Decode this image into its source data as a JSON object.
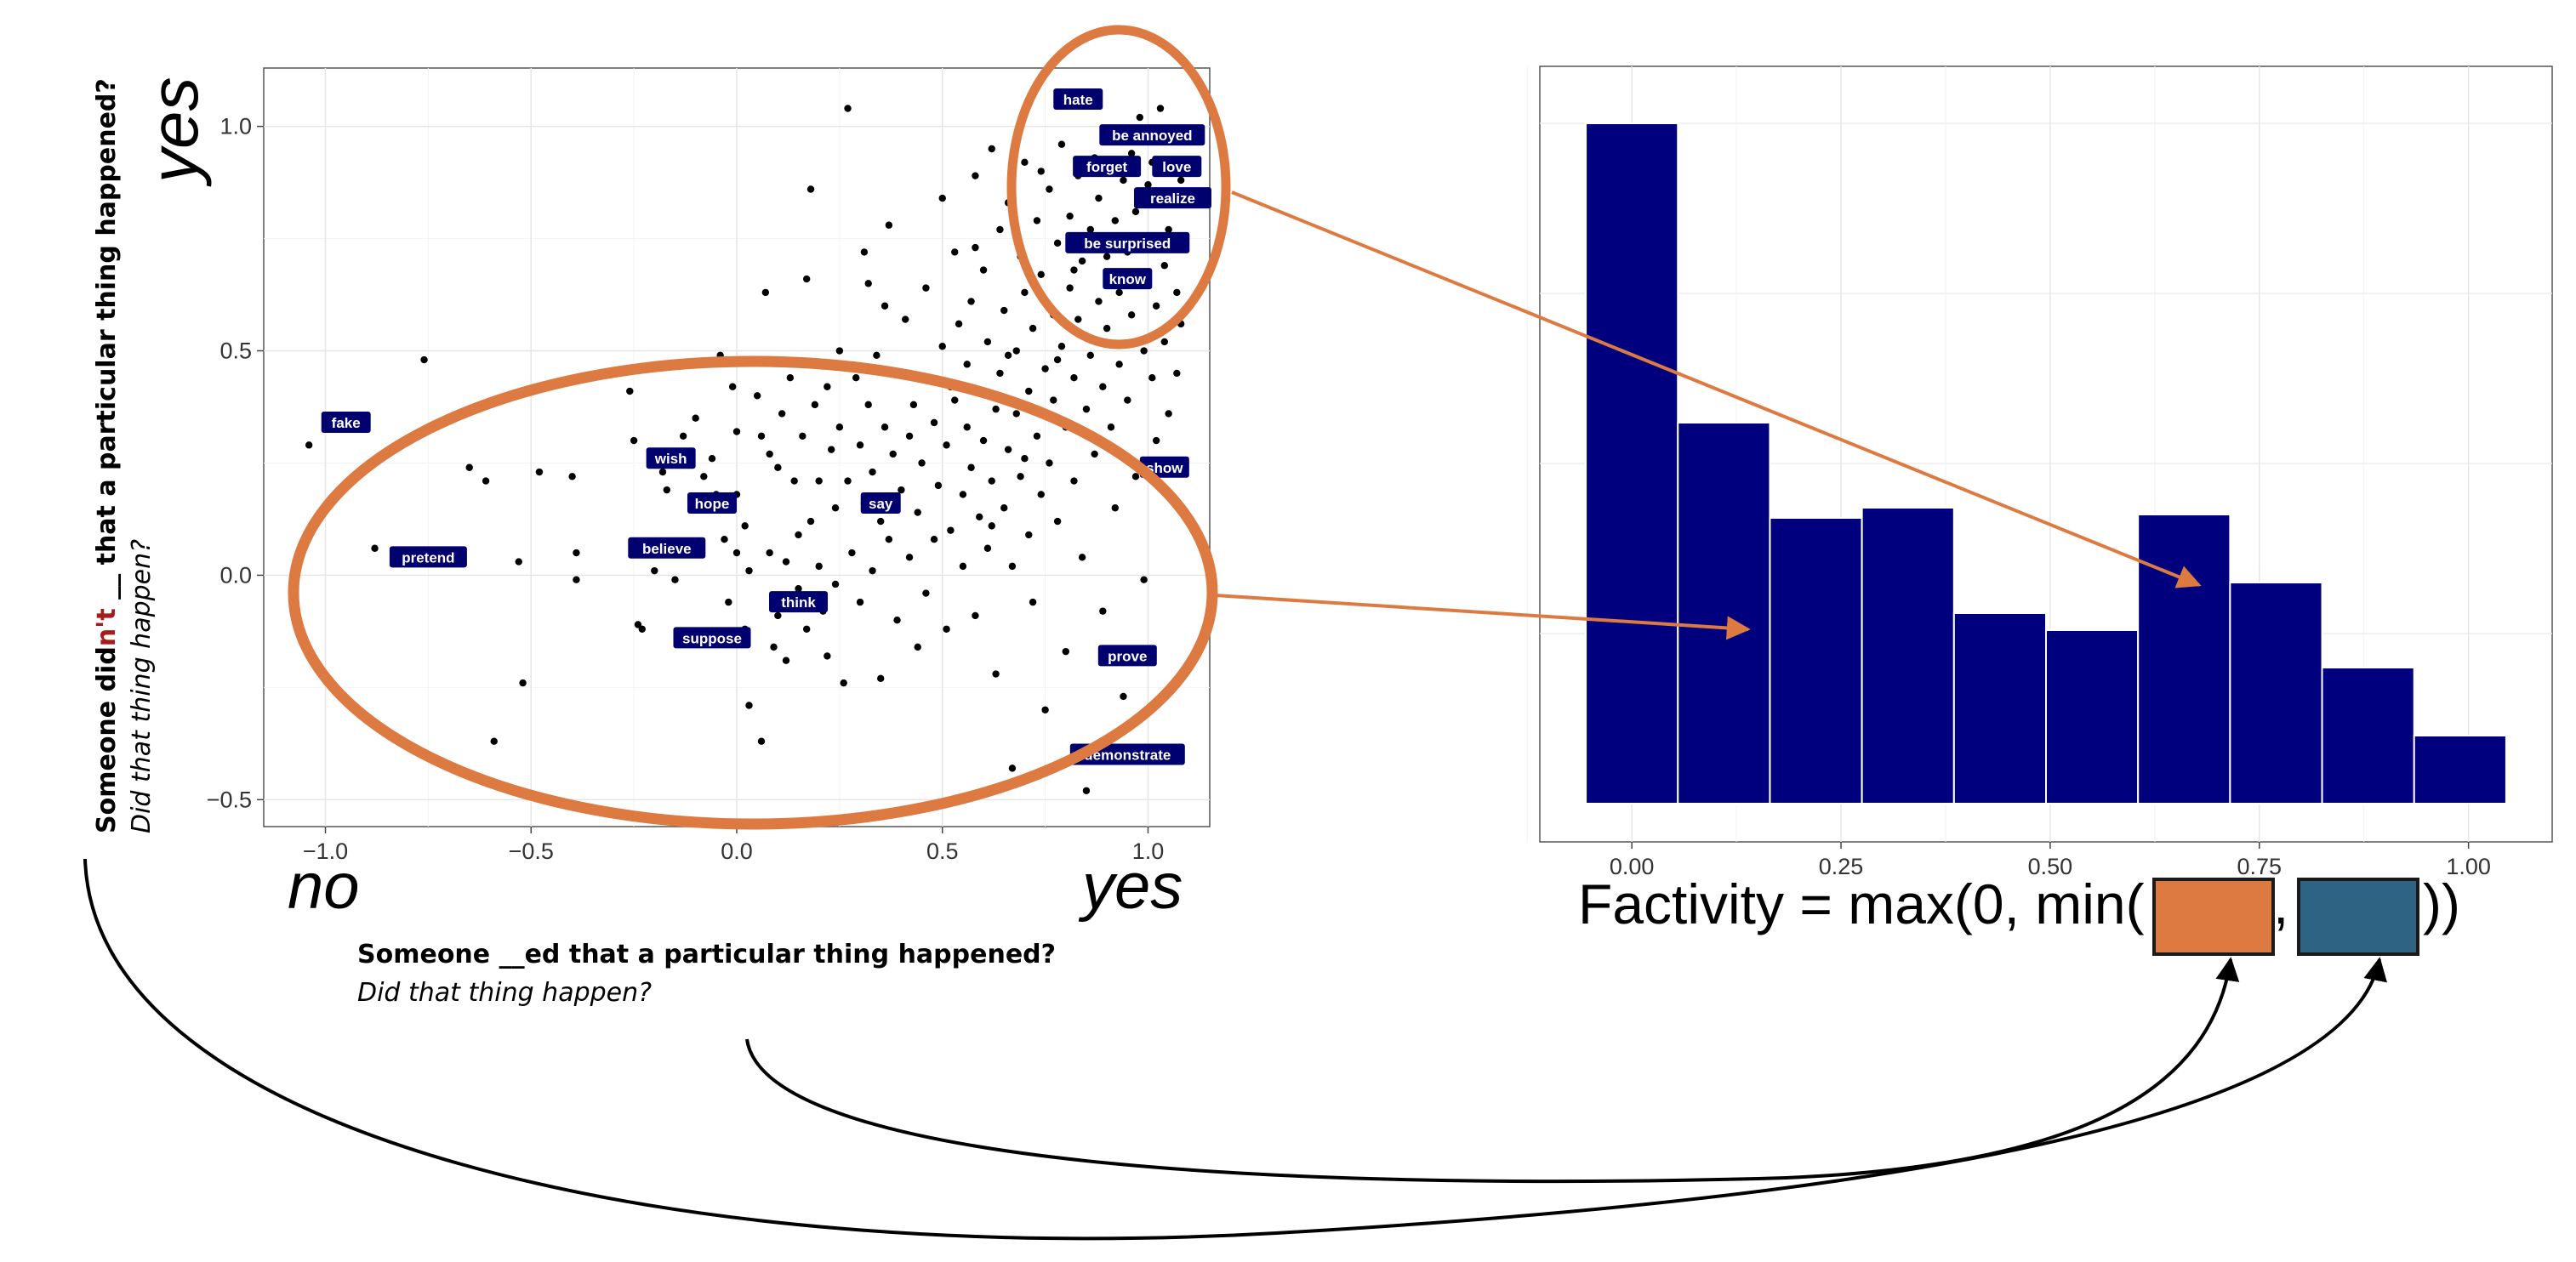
{
  "colors": {
    "accent_orange": "#dd7a42",
    "bar_navy": "#00007f",
    "label_navy": "#00006e",
    "box_blue": "#2e6383",
    "negation_red": "#a51c1c"
  },
  "y_question": {
    "prefix": "Someone did",
    "negation": "n't",
    "suffix": " __ that a particular thing happened?",
    "sub": "Did that thing happen?"
  },
  "x_question": {
    "text": "Someone  __ed that a particular thing happened?",
    "sub": "Did that thing happen?"
  },
  "axis_words": {
    "y_top": "yes",
    "x_left": "no",
    "x_right": "yes"
  },
  "formula": {
    "prefix": "Factivity = max(0, min(",
    "comma": ",",
    "suffix": "))"
  },
  "chart_data": [
    {
      "type": "scatter",
      "xlim": [
        -1.15,
        1.15
      ],
      "ylim": [
        -0.56,
        1.13
      ],
      "x_ticks": [
        -1.0,
        -0.5,
        0.0,
        0.5,
        1.0
      ],
      "x_tick_labels": [
        "−1.0",
        "−0.5",
        "0.0",
        "0.5",
        "1.0"
      ],
      "y_ticks": [
        -0.5,
        0.0,
        0.5,
        1.0
      ],
      "y_tick_labels": [
        "−0.5",
        "0.0",
        "0.5",
        "1.0"
      ],
      "grid": true,
      "labeled_points": [
        {
          "label": "hate",
          "x": 0.83,
          "y": 1.06
        },
        {
          "label": "be annoyed",
          "x": 1.01,
          "y": 0.98
        },
        {
          "label": "forget",
          "x": 0.9,
          "y": 0.91
        },
        {
          "label": "love",
          "x": 1.07,
          "y": 0.91
        },
        {
          "label": "realize",
          "x": 1.06,
          "y": 0.84
        },
        {
          "label": "be surprised",
          "x": 0.95,
          "y": 0.74
        },
        {
          "label": "know",
          "x": 0.95,
          "y": 0.66
        },
        {
          "label": "fake",
          "x": -0.95,
          "y": 0.34
        },
        {
          "label": "wish",
          "x": -0.16,
          "y": 0.26
        },
        {
          "label": "hope",
          "x": -0.06,
          "y": 0.16
        },
        {
          "label": "say",
          "x": 0.35,
          "y": 0.16
        },
        {
          "label": "show",
          "x": 1.04,
          "y": 0.24
        },
        {
          "label": "pretend",
          "x": -0.75,
          "y": 0.04
        },
        {
          "label": "believe",
          "x": -0.17,
          "y": 0.06
        },
        {
          "label": "think",
          "x": 0.15,
          "y": -0.06
        },
        {
          "label": "suppose",
          "x": -0.06,
          "y": -0.14
        },
        {
          "label": "prove",
          "x": 0.95,
          "y": -0.18
        },
        {
          "label": "demonstrate",
          "x": 0.95,
          "y": -0.4
        }
      ],
      "points": [
        [
          -1.04,
          0.29
        ],
        [
          -0.88,
          0.06
        ],
        [
          -0.76,
          0.48
        ],
        [
          -0.65,
          0.24
        ],
        [
          -0.61,
          0.21
        ],
        [
          -0.59,
          -0.37
        ],
        [
          -0.53,
          0.03
        ],
        [
          -0.52,
          -0.24
        ],
        [
          -0.48,
          0.23
        ],
        [
          -0.4,
          0.22
        ],
        [
          -0.39,
          0.05
        ],
        [
          -0.39,
          -0.01
        ],
        [
          -0.26,
          0.41
        ],
        [
          -0.25,
          0.3
        ],
        [
          -0.24,
          -0.11
        ],
        [
          -0.23,
          -0.12
        ],
        [
          -0.18,
          0.23
        ],
        [
          -0.17,
          0.19
        ],
        [
          -0.16,
          0.07
        ],
        [
          -0.15,
          -0.01
        ],
        [
          -0.14,
          -0.13
        ],
        [
          -0.13,
          0.31
        ],
        [
          -0.1,
          0.35
        ],
        [
          -0.08,
          0.22
        ],
        [
          -0.06,
          0.26
        ],
        [
          -0.05,
          0.18
        ],
        [
          -0.04,
          0.49
        ],
        [
          -0.03,
          0.08
        ],
        [
          -0.02,
          -0.06
        ],
        [
          -0.01,
          0.42
        ],
        [
          0.0,
          0.18
        ],
        [
          0.0,
          0.05
        ],
        [
          0.02,
          0.11
        ],
        [
          0.02,
          -0.12
        ],
        [
          0.03,
          0.01
        ],
        [
          0.03,
          -0.29
        ],
        [
          0.05,
          0.4
        ],
        [
          0.06,
          0.31
        ],
        [
          0.06,
          -0.37
        ],
        [
          0.07,
          0.63
        ],
        [
          0.08,
          0.27
        ],
        [
          0.08,
          0.05
        ],
        [
          0.09,
          -0.16
        ],
        [
          0.1,
          0.24
        ],
        [
          0.1,
          -0.09
        ],
        [
          0.11,
          0.36
        ],
        [
          0.12,
          0.03
        ],
        [
          0.12,
          -0.19
        ],
        [
          0.13,
          0.44
        ],
        [
          0.14,
          0.21
        ],
        [
          0.15,
          0.09
        ],
        [
          0.15,
          -0.03
        ],
        [
          0.16,
          0.31
        ],
        [
          0.17,
          0.66
        ],
        [
          0.17,
          -0.12
        ],
        [
          0.18,
          0.12
        ],
        [
          0.18,
          0.86
        ],
        [
          0.19,
          0.38
        ],
        [
          0.2,
          0.21
        ],
        [
          0.2,
          0.02
        ],
        [
          0.21,
          -0.08
        ],
        [
          0.22,
          0.42
        ],
        [
          0.23,
          0.28
        ],
        [
          0.24,
          0.15
        ],
        [
          0.24,
          -0.02
        ],
        [
          0.25,
          0.5
        ],
        [
          0.25,
          0.33
        ],
        [
          0.26,
          -0.24
        ],
        [
          0.27,
          1.04
        ],
        [
          0.27,
          0.21
        ],
        [
          0.28,
          0.05
        ],
        [
          0.29,
          0.44
        ],
        [
          0.3,
          0.29
        ],
        [
          0.3,
          -0.06
        ],
        [
          0.31,
          0.72
        ],
        [
          0.31,
          0.16
        ],
        [
          0.32,
          0.38
        ],
        [
          0.32,
          0.65
        ],
        [
          0.33,
          0.23
        ],
        [
          0.33,
          0.01
        ],
        [
          0.34,
          0.49
        ],
        [
          0.35,
          0.12
        ],
        [
          0.35,
          -0.23
        ],
        [
          0.36,
          0.33
        ],
        [
          0.37,
          0.78
        ],
        [
          0.37,
          0.08
        ],
        [
          0.38,
          0.27
        ],
        [
          0.39,
          0.45
        ],
        [
          0.39,
          -0.1
        ],
        [
          0.4,
          0.19
        ],
        [
          0.41,
          0.57
        ],
        [
          0.42,
          0.31
        ],
        [
          0.42,
          0.04
        ],
        [
          0.43,
          0.38
        ],
        [
          0.44,
          0.14
        ],
        [
          0.45,
          0.25
        ],
        [
          0.46,
          0.64
        ],
        [
          0.46,
          -0.04
        ],
        [
          0.47,
          0.44
        ],
        [
          0.48,
          0.34
        ],
        [
          0.48,
          0.08
        ],
        [
          0.49,
          0.2
        ],
        [
          0.5,
          0.84
        ],
        [
          0.5,
          0.51
        ],
        [
          0.51,
          0.29
        ],
        [
          0.51,
          -0.12
        ],
        [
          0.52,
          0.1
        ],
        [
          0.53,
          0.39
        ],
        [
          0.53,
          0.72
        ],
        [
          0.54,
          0.56
        ],
        [
          0.55,
          0.18
        ],
        [
          0.55,
          0.02
        ],
        [
          0.56,
          0.47
        ],
        [
          0.56,
          0.33
        ],
        [
          0.57,
          0.61
        ],
        [
          0.57,
          0.24
        ],
        [
          0.58,
          0.89
        ],
        [
          0.58,
          -0.09
        ],
        [
          0.59,
          0.41
        ],
        [
          0.59,
          0.13
        ],
        [
          0.6,
          0.68
        ],
        [
          0.6,
          0.3
        ],
        [
          0.61,
          0.52
        ],
        [
          0.61,
          0.06
        ],
        [
          0.62,
          0.21
        ],
        [
          0.62,
          0.95
        ],
        [
          0.63,
          0.37
        ],
        [
          0.63,
          -0.22
        ],
        [
          0.64,
          0.77
        ],
        [
          0.64,
          0.45
        ],
        [
          0.65,
          0.15
        ],
        [
          0.65,
          0.59
        ],
        [
          0.66,
          0.28
        ],
        [
          0.66,
          0.83
        ],
        [
          0.67,
          0.02
        ],
        [
          0.67,
          -0.43
        ],
        [
          0.68,
          0.5
        ],
        [
          0.68,
          0.36
        ],
        [
          0.69,
          0.71
        ],
        [
          0.69,
          0.22
        ],
        [
          0.7,
          0.92
        ],
        [
          0.7,
          0.63
        ],
        [
          0.71,
          0.41
        ],
        [
          0.71,
          0.09
        ],
        [
          0.72,
          0.55
        ],
        [
          0.72,
          -0.06
        ],
        [
          0.73,
          0.79
        ],
        [
          0.73,
          0.31
        ],
        [
          0.74,
          0.18
        ],
        [
          0.74,
          0.67
        ],
        [
          0.75,
          0.46
        ],
        [
          0.75,
          -0.3
        ],
        [
          0.76,
          0.86
        ],
        [
          0.76,
          0.25
        ],
        [
          0.77,
          0.58
        ],
        [
          0.77,
          0.39
        ],
        [
          0.78,
          0.74
        ],
        [
          0.78,
          0.12
        ],
        [
          0.79,
          0.96
        ],
        [
          0.79,
          0.51
        ],
        [
          0.8,
          0.33
        ],
        [
          0.8,
          -0.17
        ],
        [
          0.81,
          0.64
        ],
        [
          0.81,
          0.8
        ],
        [
          0.82,
          0.44
        ],
        [
          0.82,
          0.21
        ],
        [
          0.83,
          0.89
        ],
        [
          0.83,
          0.57
        ],
        [
          0.84,
          0.7
        ],
        [
          0.84,
          0.04
        ],
        [
          0.85,
          0.37
        ],
        [
          0.85,
          -0.48
        ],
        [
          0.86,
          0.77
        ],
        [
          0.86,
          0.49
        ],
        [
          0.87,
          0.93
        ],
        [
          0.87,
          0.27
        ],
        [
          0.88,
          0.61
        ],
        [
          0.88,
          0.84
        ],
        [
          0.89,
          0.42
        ],
        [
          0.89,
          -0.08
        ],
        [
          0.9,
          0.71
        ],
        [
          0.9,
          0.55
        ],
        [
          0.91,
          0.98
        ],
        [
          0.91,
          0.33
        ],
        [
          0.92,
          0.79
        ],
        [
          0.92,
          0.15
        ],
        [
          0.93,
          0.63
        ],
        [
          0.93,
          0.47
        ],
        [
          0.94,
          0.88
        ],
        [
          0.94,
          -0.27
        ],
        [
          0.95,
          0.72
        ],
        [
          0.95,
          0.39
        ],
        [
          0.96,
          0.94
        ],
        [
          0.96,
          0.58
        ],
        [
          0.97,
          0.81
        ],
        [
          0.97,
          0.22
        ],
        [
          0.98,
          1.02
        ],
        [
          0.98,
          0.66
        ],
        [
          0.99,
          0.5
        ],
        [
          0.99,
          -0.01
        ],
        [
          1.0,
          0.87
        ],
        [
          1.0,
          0.75
        ],
        [
          1.01,
          0.44
        ],
        [
          1.01,
          0.92
        ],
        [
          1.02,
          0.6
        ],
        [
          1.02,
          0.3
        ],
        [
          1.03,
          0.83
        ],
        [
          1.03,
          1.04
        ],
        [
          1.04,
          0.69
        ],
        [
          1.04,
          0.52
        ],
        [
          1.05,
          0.77
        ],
        [
          1.05,
          0.36
        ],
        [
          1.06,
          0.97
        ],
        [
          1.07,
          0.63
        ],
        [
          1.07,
          0.45
        ],
        [
          1.08,
          0.88
        ],
        [
          1.08,
          0.56
        ],
        [
          -0.3,
          0.45
        ],
        [
          -0.2,
          0.01
        ],
        [
          0.0,
          0.32
        ],
        [
          0.14,
          0.47
        ],
        [
          0.22,
          -0.18
        ],
        [
          0.36,
          0.6
        ],
        [
          0.44,
          -0.16
        ],
        [
          0.52,
          0.42
        ],
        [
          0.58,
          0.73
        ],
        [
          0.62,
          0.11
        ],
        [
          0.66,
          0.49
        ],
        [
          0.7,
          0.26
        ],
        [
          0.74,
          0.9
        ],
        [
          0.78,
          0.48
        ],
        [
          0.82,
          0.68
        ]
      ]
    },
    {
      "type": "bar",
      "bin_width": 0.11,
      "x": [
        0.0,
        0.11,
        0.22,
        0.33,
        0.44,
        0.55,
        0.66,
        0.77,
        0.88,
        0.99
      ],
      "values": [
        1.0,
        0.56,
        0.42,
        0.435,
        0.28,
        0.255,
        0.425,
        0.325,
        0.2,
        0.1
      ],
      "xlim": [
        -0.11,
        1.1
      ],
      "ylim": [
        0,
        1.05
      ],
      "x_ticks": [
        0.0,
        0.25,
        0.5,
        0.75,
        1.0
      ],
      "x_tick_labels": [
        "0.00",
        "0.25",
        "0.50",
        "0.75",
        "1.00"
      ],
      "grid": true
    }
  ]
}
